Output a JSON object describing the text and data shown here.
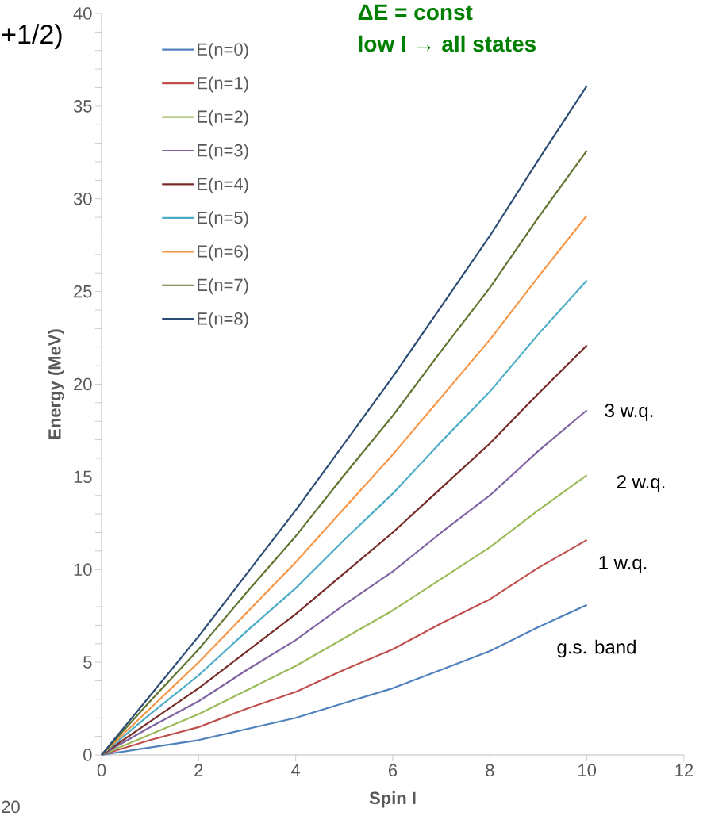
{
  "chart_data": {
    "type": "line",
    "xlabel": "Spin I",
    "ylabel": "Energy (MeV)",
    "x": [
      0,
      1,
      2,
      3,
      4,
      5,
      6,
      7,
      8,
      9,
      10
    ],
    "series": [
      {
        "name": "E(n=0)",
        "color": "#4f81bd",
        "values": [
          0,
          0.4,
          0.8,
          1.4,
          2.0,
          2.8,
          3.6,
          4.6,
          5.6,
          6.9,
          8.1
        ]
      },
      {
        "name": "E(n=1)",
        "color": "#c0504d",
        "values": [
          0,
          0.8,
          1.5,
          2.5,
          3.4,
          4.6,
          5.7,
          7.1,
          8.4,
          10.1,
          11.6
        ]
      },
      {
        "name": "E(n=2)",
        "color": "#9bbb59",
        "values": [
          0,
          1.1,
          2.2,
          3.5,
          4.8,
          6.3,
          7.8,
          9.5,
          11.2,
          13.2,
          15.1
        ]
      },
      {
        "name": "E(n=3)",
        "color": "#8064a2",
        "values": [
          0,
          1.5,
          2.9,
          4.6,
          6.2,
          8.1,
          9.9,
          12.0,
          14.0,
          16.4,
          18.6
        ]
      },
      {
        "name": "E(n=4)",
        "color": "#772c2a",
        "values": [
          0,
          1.8,
          3.6,
          5.6,
          7.6,
          9.8,
          12.0,
          14.4,
          16.8,
          19.5,
          22.1
        ]
      },
      {
        "name": "E(n=5)",
        "color": "#4bacc6",
        "values": [
          0,
          2.2,
          4.3,
          6.7,
          9.0,
          11.6,
          14.1,
          16.9,
          19.6,
          22.7,
          25.6
        ]
      },
      {
        "name": "E(n=6)",
        "color": "#f79646",
        "values": [
          0,
          2.5,
          5.0,
          7.7,
          10.4,
          13.3,
          16.2,
          19.3,
          22.4,
          25.8,
          29.1
        ]
      },
      {
        "name": "E(n=7)",
        "color": "#5f7530",
        "values": [
          0,
          2.9,
          5.7,
          8.8,
          11.8,
          15.1,
          18.3,
          21.8,
          25.2,
          29.0,
          32.6
        ]
      },
      {
        "name": "E(n=8)",
        "color": "#2c4d75",
        "values": [
          0,
          3.2,
          6.4,
          9.8,
          13.2,
          16.8,
          20.4,
          24.2,
          28.0,
          32.1,
          36.1
        ]
      }
    ],
    "xlim": [
      0,
      12
    ],
    "xticks": [
      0,
      2,
      4,
      6,
      8,
      10,
      12
    ],
    "ylim": [
      0,
      40
    ],
    "yticks": [
      0,
      5,
      10,
      15,
      20,
      25,
      30,
      35,
      40
    ],
    "legend": "top left",
    "marker": "none",
    "line_style": "solid",
    "grid": false,
    "annotations": [
      "ΔE = const",
      "low I → all states",
      "3 w.q.",
      "2 w.q.",
      "1 w.q.",
      "g.s. band",
      "+1/2)",
      "20"
    ]
  }
}
